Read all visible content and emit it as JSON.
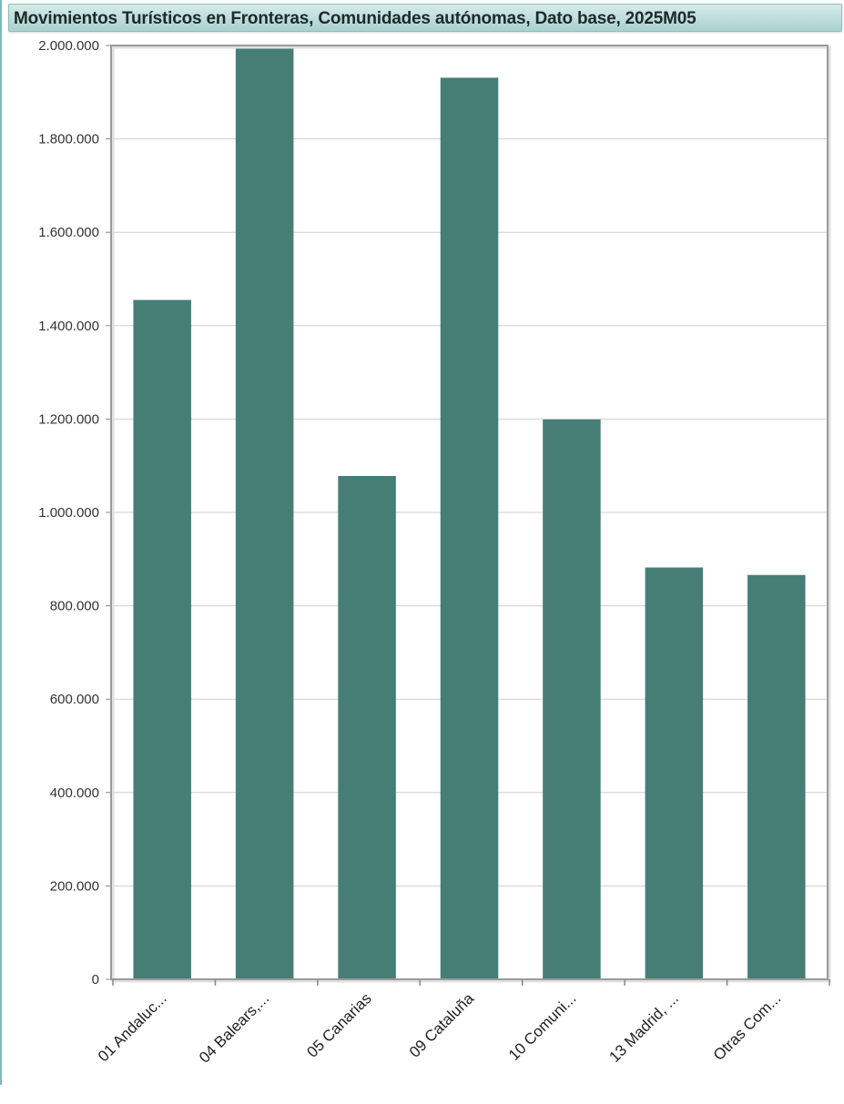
{
  "title": "Movimientos Turísticos en Fronteras, Comunidades autónomas, Dato base, 2025M05",
  "colors": {
    "bar": "#467e76",
    "grid": "#cfcfcf",
    "frame": "#9a9a9a",
    "accent": "#7fb9b8"
  },
  "chart_data": {
    "type": "bar",
    "title": "Movimientos Turísticos en Fronteras, Comunidades autónomas, Dato base, 2025M05",
    "categories": [
      "01 Andaluc...",
      "04 Balears,...",
      "05 Canarias",
      "09 Cataluña",
      "10 Comuni...",
      "13 Madrid, ...",
      "Otras Com..."
    ],
    "values": [
      1455000,
      1995000,
      1078000,
      1931000,
      1199000,
      882000,
      866000
    ],
    "ylim": [
      0,
      2000000
    ],
    "yticks": [
      0,
      200000,
      400000,
      600000,
      800000,
      1000000,
      1200000,
      1400000,
      1600000,
      1800000,
      2000000
    ],
    "ytick_labels": [
      "0",
      "200.000",
      "400.000",
      "600.000",
      "800.000",
      "1.000.000",
      "1.200.000",
      "1.400.000",
      "1.600.000",
      "1.800.000",
      "2.000.000"
    ],
    "xlabel": "",
    "ylabel": "",
    "grid": true,
    "legend": "none"
  }
}
